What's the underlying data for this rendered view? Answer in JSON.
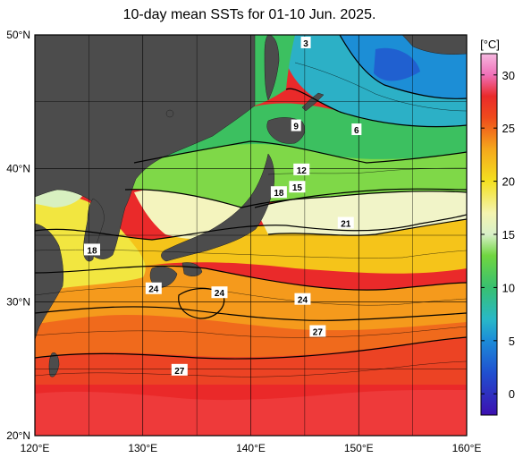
{
  "title": "10-day mean SSTs for 01-10 Jun. 2025.",
  "unit_label": "[°C]",
  "lat_labels": [
    "50°N",
    "40°N",
    "30°N",
    "20°N"
  ],
  "lon_labels": [
    "120°E",
    "130°E",
    "140°E",
    "150°E",
    "160°E"
  ],
  "lat_values": [
    50,
    40,
    30,
    20
  ],
  "lon_values": [
    120,
    130,
    140,
    150,
    160
  ],
  "colorbar": {
    "ticks": [
      "30",
      "25",
      "20",
      "15",
      "10",
      "5",
      "0"
    ],
    "tick_values": [
      30,
      25,
      20,
      15,
      10,
      5,
      0
    ],
    "range": [
      -2,
      32
    ],
    "stops": [
      {
        "v": -2,
        "c": "#3c10b0"
      },
      {
        "v": 2,
        "c": "#2050d0"
      },
      {
        "v": 5,
        "c": "#1c8cd8"
      },
      {
        "v": 7,
        "c": "#28b8c8"
      },
      {
        "v": 10,
        "c": "#38c070"
      },
      {
        "v": 13,
        "c": "#70d640"
      },
      {
        "v": 15,
        "c": "#d8f0c8"
      },
      {
        "v": 17,
        "c": "#f4f4b0"
      },
      {
        "v": 20,
        "c": "#f4e020"
      },
      {
        "v": 23,
        "c": "#f5a81c"
      },
      {
        "v": 26,
        "c": "#ef4a1c"
      },
      {
        "v": 28,
        "c": "#ea2a2a"
      },
      {
        "v": 30,
        "c": "#f070b8"
      },
      {
        "v": 32,
        "c": "#f6b8e0"
      }
    ]
  },
  "contour_labels": [
    {
      "text": "6",
      "lon": 149.8,
      "lat": 42.9
    },
    {
      "text": "9",
      "lon": 144.2,
      "lat": 43.2
    },
    {
      "text": "12",
      "lon": 144.7,
      "lat": 39.9
    },
    {
      "text": "15",
      "lon": 144.3,
      "lat": 38.6
    },
    {
      "text": "18",
      "lon": 142.6,
      "lat": 38.2
    },
    {
      "text": "21",
      "lon": 148.8,
      "lat": 35.9
    },
    {
      "text": "18",
      "lon": 125.3,
      "lat": 33.9
    },
    {
      "text": "24",
      "lon": 131.0,
      "lat": 31.0
    },
    {
      "text": "24",
      "lon": 137.1,
      "lat": 30.7
    },
    {
      "text": "24",
      "lon": 144.8,
      "lat": 30.2
    },
    {
      "text": "27",
      "lon": 146.2,
      "lat": 27.8
    },
    {
      "text": "27",
      "lon": 133.4,
      "lat": 24.9
    },
    {
      "text": "3",
      "lon": 145.1,
      "lat": 49.4
    }
  ],
  "colors": {
    "land": "#4c4c4c",
    "grid": "#000000",
    "contour": "#000000"
  }
}
